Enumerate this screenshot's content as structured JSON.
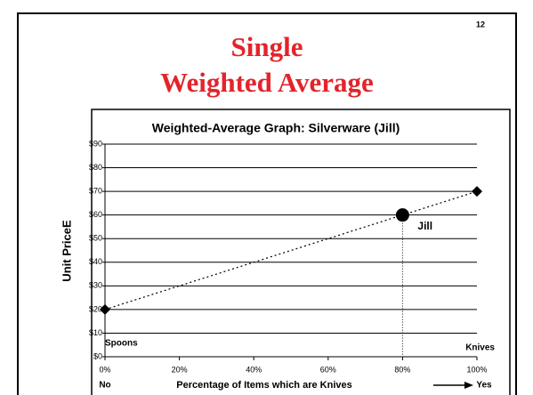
{
  "page_number": "12",
  "title_lines": [
    "Single",
    "Weighted Average"
  ],
  "chart_data": {
    "type": "line",
    "title": "Weighted-Average Graph: Silverware (Jill)",
    "y_label": "Unit PriceE",
    "x_label": "Percentage of Items which are Knives",
    "x_start_label": "No",
    "x_end_label": "Yes",
    "annotations": [
      "Spoons",
      "Knives"
    ],
    "series": [
      {
        "color": "#000000",
        "x": [
          0,
          100
        ],
        "values": [
          20,
          70
        ]
      }
    ],
    "points": [
      {
        "label": "Jill",
        "x": 80,
        "y": 60,
        "color": "#000000"
      }
    ],
    "xlim": [
      0,
      100
    ],
    "xticks": [
      {
        "value": 0,
        "label": "0%"
      },
      {
        "value": 20,
        "label": "20%"
      },
      {
        "value": 40,
        "label": "40%"
      },
      {
        "value": 60,
        "label": "60%"
      },
      {
        "value": 80,
        "label": "80%"
      },
      {
        "value": 100,
        "label": "100%"
      }
    ],
    "ylim": [
      0,
      90
    ],
    "yticks": [
      {
        "value": 0,
        "label": "$0"
      },
      {
        "value": 10,
        "label": "$10"
      },
      {
        "value": 20,
        "label": "$20"
      },
      {
        "value": 30,
        "label": "$30"
      },
      {
        "value": 40,
        "label": "$40"
      },
      {
        "value": 50,
        "label": "$50"
      },
      {
        "value": 60,
        "label": "$60"
      },
      {
        "value": 70,
        "label": "$70"
      },
      {
        "value": 80,
        "label": "$80"
      },
      {
        "value": 90,
        "label": "$90"
      }
    ],
    "grid": true
  }
}
